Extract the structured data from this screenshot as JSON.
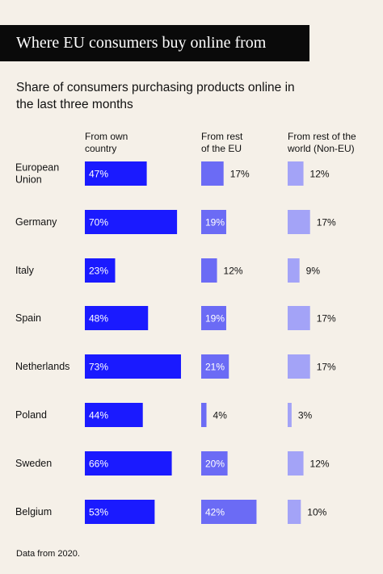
{
  "title": "Where EU consumers buy online from",
  "subtitle": "Share of consumers purchasing products online in the last three months",
  "footer": "Data from 2020.",
  "colors": {
    "own": "#1a1aff",
    "rest_eu": "#6b6bf5",
    "non_eu": "#a3a3f7",
    "background": "#f5f0e8"
  },
  "chart_data": {
    "type": "bar",
    "title": "Share of consumers purchasing products online in the last three months",
    "categories": [
      "European Union",
      "Germany",
      "Italy",
      "Spain",
      "Netherlands",
      "Poland",
      "Sweden",
      "Belgium"
    ],
    "series": [
      {
        "name": "From own country",
        "values": [
          47,
          70,
          23,
          48,
          73,
          44,
          66,
          53
        ],
        "labels": [
          "47%",
          "70%",
          "23%",
          "48%",
          "73%",
          "44%",
          "66%",
          "53%"
        ]
      },
      {
        "name": "From rest of the EU",
        "values": [
          17,
          19,
          12,
          19,
          21,
          4,
          20,
          42
        ],
        "labels": [
          "17%",
          "19%",
          "12%",
          "19%",
          "21%",
          "4%",
          "20%",
          "42%"
        ]
      },
      {
        "name": "From rest of the world (Non-EU)",
        "values": [
          12,
          17,
          9,
          17,
          17,
          3,
          12,
          10
        ],
        "labels": [
          "12%",
          "17%",
          "9%",
          "17%",
          "17%",
          "3%",
          "12%",
          "10%"
        ]
      }
    ],
    "category_labels": [
      [
        "European",
        "Union"
      ],
      [
        "Germany"
      ],
      [
        "Italy"
      ],
      [
        "Spain"
      ],
      [
        "Netherlands"
      ],
      [
        "Poland"
      ],
      [
        "Sweden"
      ],
      [
        "Belgium"
      ]
    ],
    "column_headers": [
      [
        "From own",
        "country"
      ],
      [
        "From rest",
        "of the EU"
      ],
      [
        "From rest of the",
        "world (Non-EU)"
      ]
    ]
  }
}
